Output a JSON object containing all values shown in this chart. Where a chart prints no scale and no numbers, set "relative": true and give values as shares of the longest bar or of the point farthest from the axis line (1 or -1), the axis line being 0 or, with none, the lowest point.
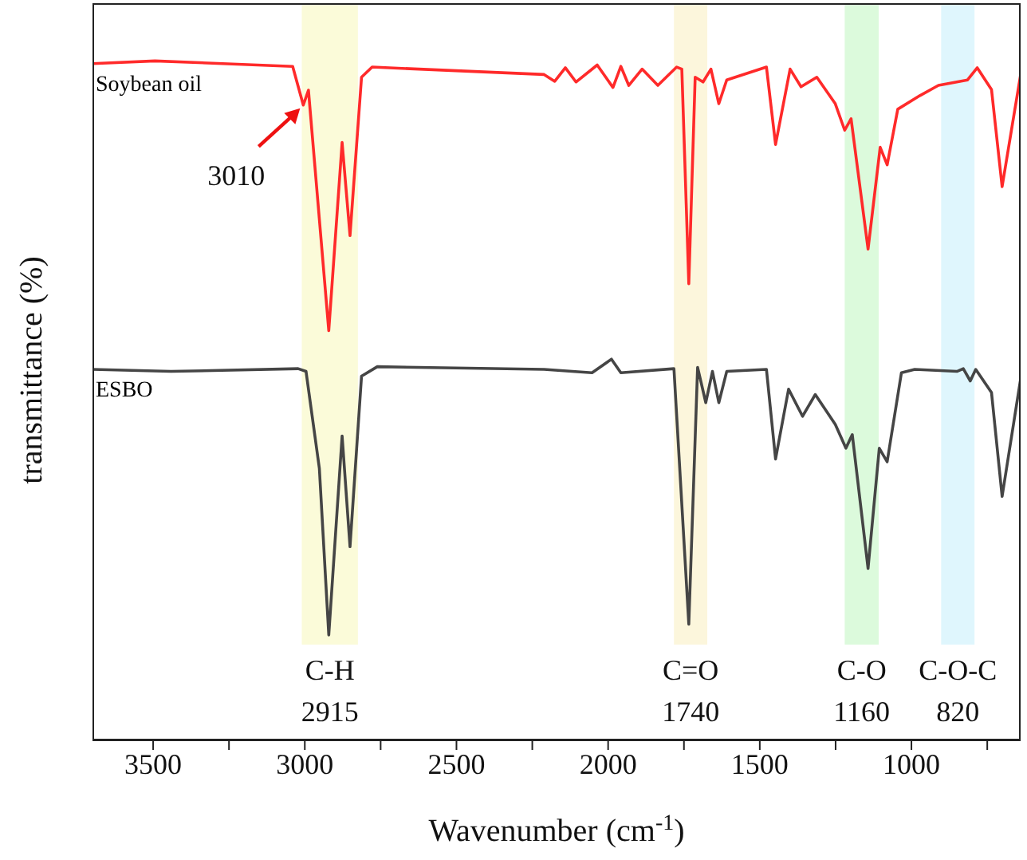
{
  "chart_data": {
    "type": "line",
    "xlabel": "Wavenumber (cm$^{-1}$)",
    "ylabel": "transmittance (%)",
    "relative": true,
    "xlim": [
      3700,
      640
    ],
    "xticks": [
      3500,
      {
        "value": 3250,
        "label": null
      },
      3000,
      {
        "value": 2750,
        "label": null
      },
      2500,
      {
        "value": 2250,
        "label": null
      },
      2000,
      {
        "value": 1750,
        "label": null
      },
      1500,
      {
        "value": 1250,
        "label": null
      },
      1000,
      {
        "value": 750,
        "label": null
      }
    ],
    "legend": false,
    "marker": "none",
    "line_style": "solid",
    "series": [
      {
        "name": "Soybean oil",
        "color": "#ff2a2a",
        "x": [
          3700,
          3494,
          3040,
          3005,
          2988,
          2921,
          2877,
          2851,
          2813,
          2778,
          2211,
          2176,
          2141,
          2106,
          2036,
          1984,
          1958,
          1932,
          1888,
          1836,
          1774,
          1757,
          1734,
          1713,
          1687,
          1661,
          1635,
          1609,
          1478,
          1448,
          1400,
          1364,
          1312,
          1251,
          1220,
          1199,
          1143,
          1103,
          1080,
          1045,
          972,
          911,
          815,
          783,
          736,
          701,
          640
        ],
        "values": [
          0.996,
          1.0,
          0.992,
          0.935,
          0.957,
          0.603,
          0.88,
          0.743,
          0.976,
          0.991,
          0.98,
          0.97,
          0.99,
          0.969,
          0.994,
          0.961,
          0.992,
          0.964,
          0.988,
          0.964,
          0.991,
          0.988,
          0.672,
          0.976,
          0.969,
          0.988,
          0.937,
          0.972,
          0.991,
          0.877,
          0.988,
          0.962,
          0.976,
          0.937,
          0.898,
          0.915,
          0.723,
          0.873,
          0.847,
          0.929,
          0.949,
          0.964,
          0.972,
          0.99,
          0.958,
          0.815,
          0.98
        ]
      },
      {
        "name": "ESBO",
        "color": "#454545",
        "x": [
          3700,
          3441,
          3022,
          2996,
          2952,
          2921,
          2877,
          2851,
          2813,
          2761,
          2211,
          2053,
          1989,
          1958,
          1783,
          1734,
          1705,
          1678,
          1656,
          1635,
          1609,
          1478,
          1448,
          1405,
          1359,
          1317,
          1251,
          1216,
          1195,
          1143,
          1106,
          1080,
          1033,
          989,
          850,
          829,
          806,
          788,
          736,
          701,
          640
        ],
        "values": [
          0.546,
          0.543,
          0.547,
          0.543,
          0.4,
          0.155,
          0.448,
          0.285,
          0.536,
          0.55,
          0.546,
          0.541,
          0.561,
          0.541,
          0.547,
          0.171,
          0.549,
          0.497,
          0.543,
          0.497,
          0.543,
          0.546,
          0.414,
          0.517,
          0.477,
          0.509,
          0.465,
          0.43,
          0.45,
          0.253,
          0.43,
          0.41,
          0.541,
          0.546,
          0.543,
          0.547,
          0.529,
          0.546,
          0.512,
          0.359,
          0.532
        ]
      }
    ],
    "bands": [
      {
        "axis": "x",
        "from": 3010,
        "to": 2825,
        "label": "C-H 2915",
        "color": "#fbfbd9"
      },
      {
        "axis": "x",
        "from": 1783,
        "to": 1673,
        "label": "C=O 1740",
        "color": "#fcf6dc"
      },
      {
        "axis": "x",
        "from": 1220,
        "to": 1108,
        "label": "C-O 1160",
        "color": "#dcfadc"
      },
      {
        "axis": "x",
        "from": 902,
        "to": 792,
        "label": "C-O-C 820",
        "color": "#dff6fd"
      }
    ],
    "annotations": [
      {
        "text": "3010",
        "x": 3005,
        "y": 0.935
      }
    ]
  }
}
